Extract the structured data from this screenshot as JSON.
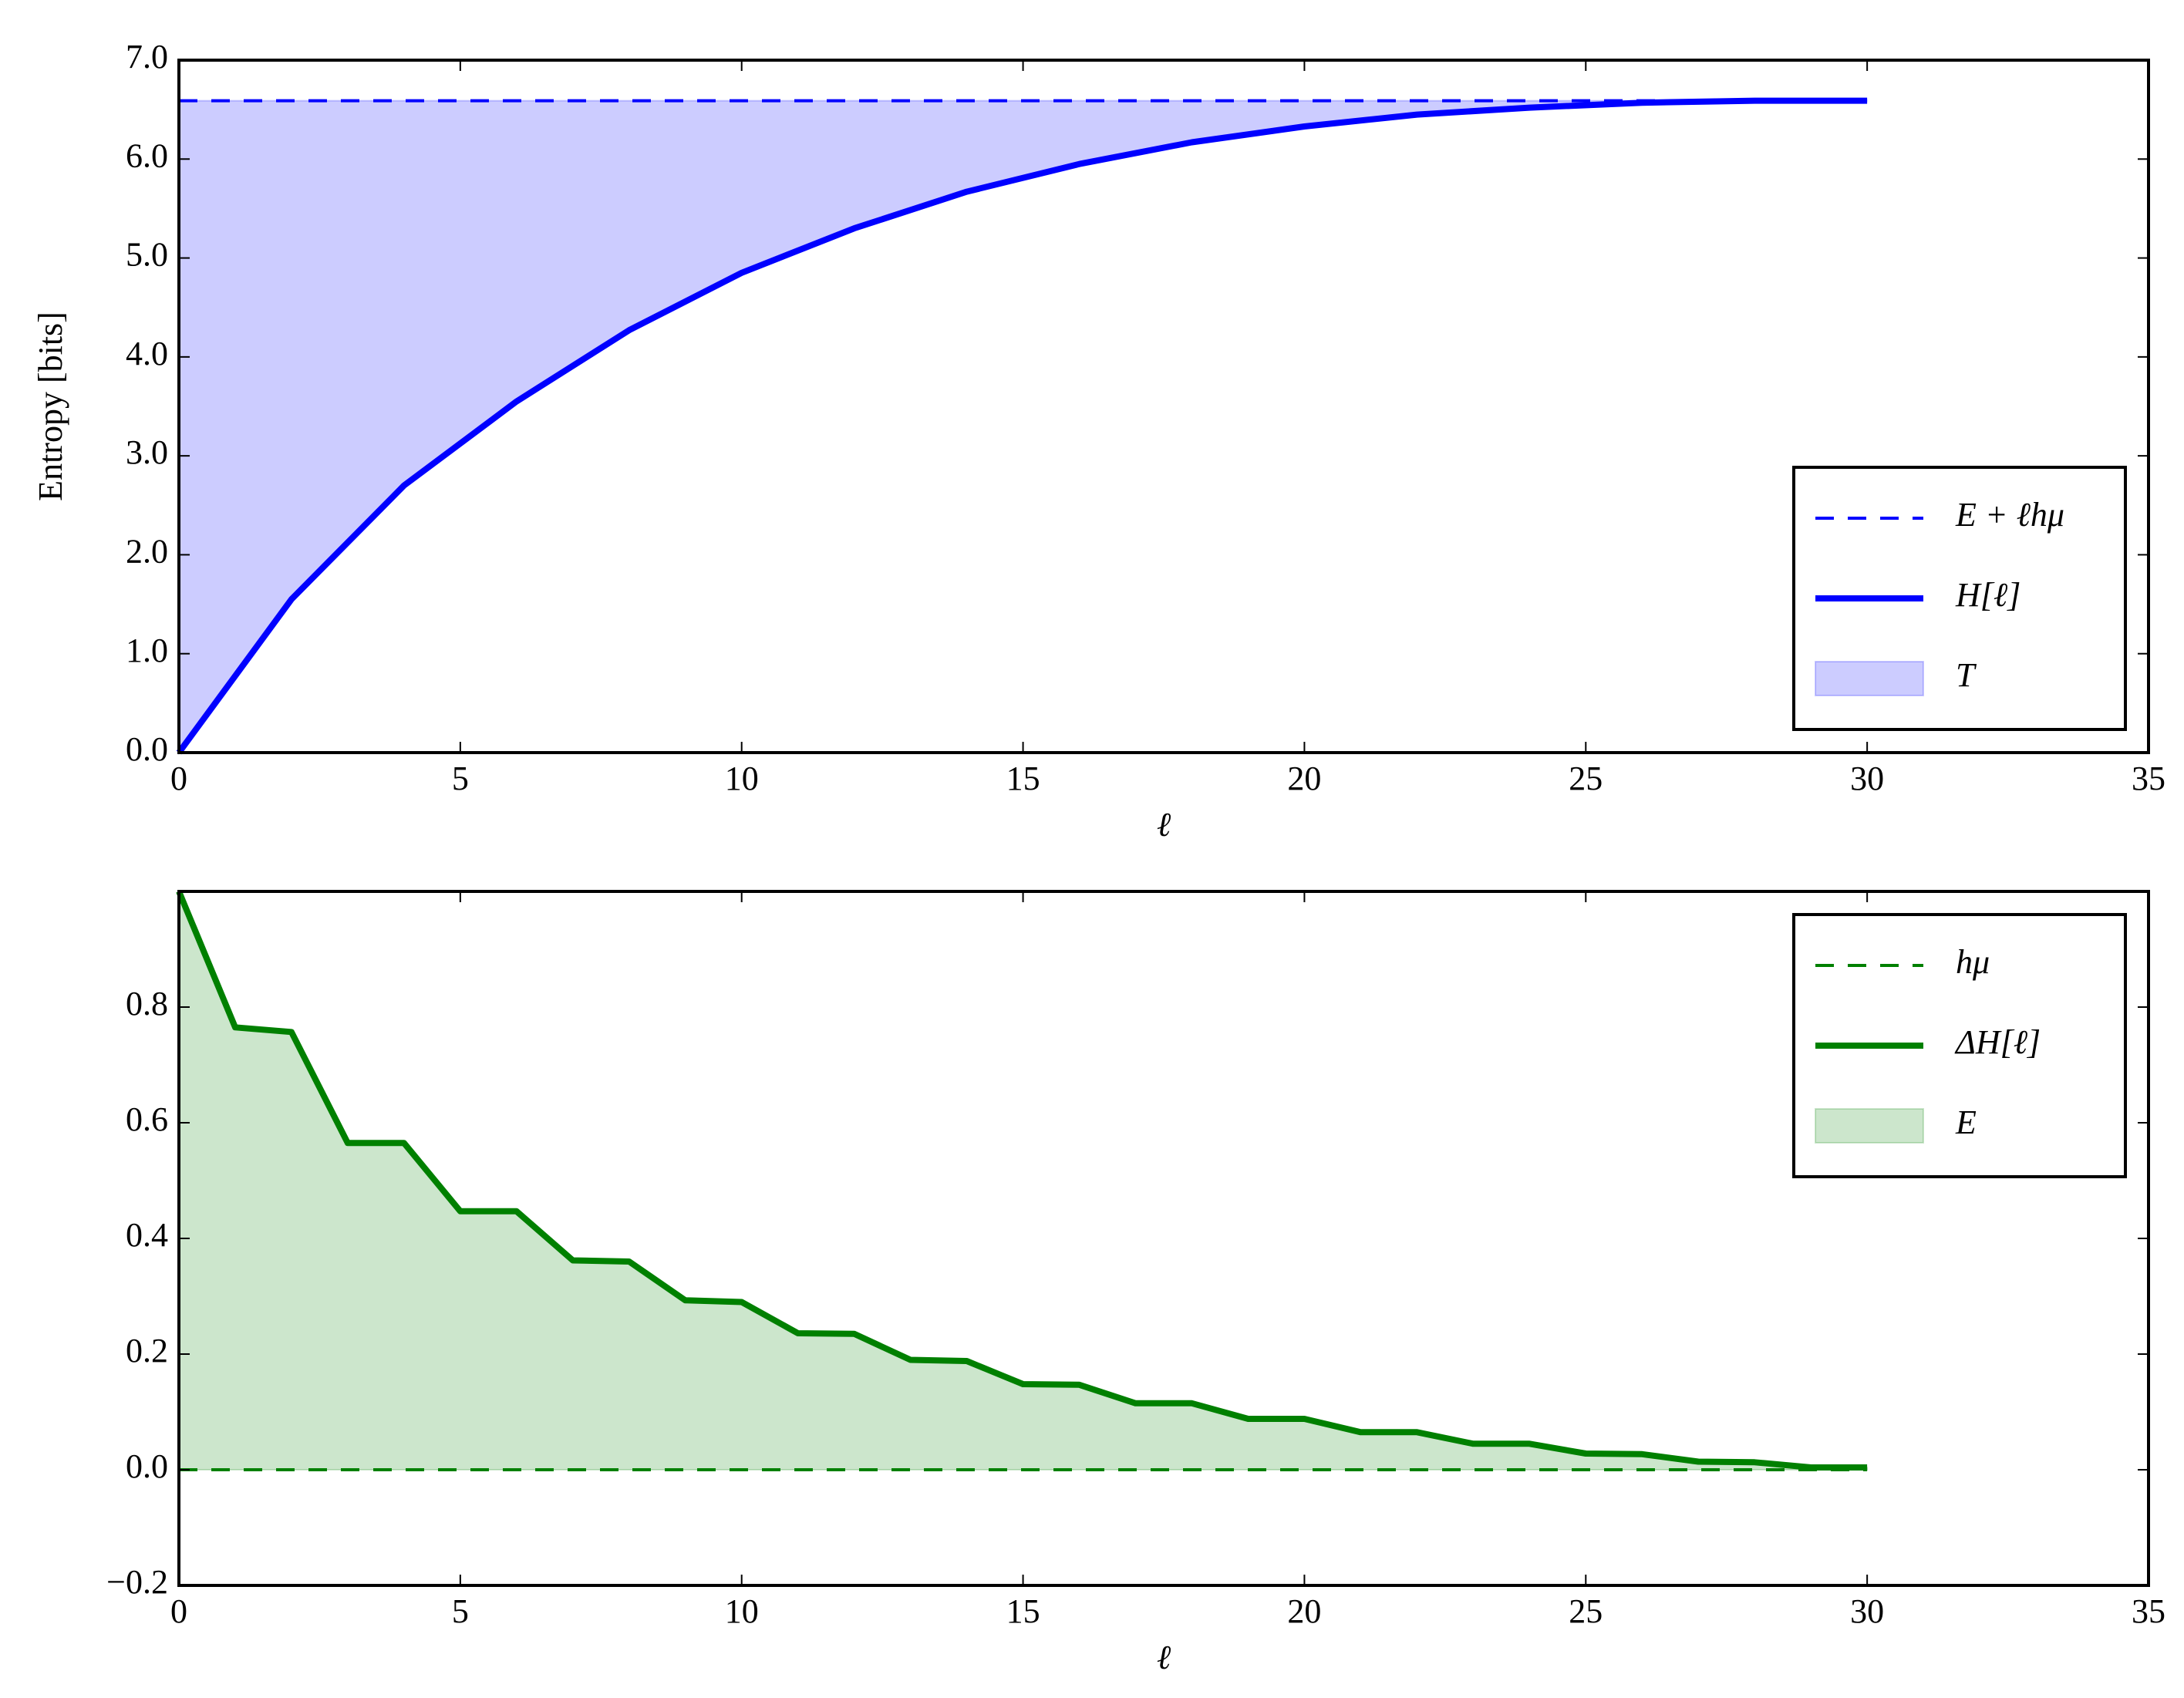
{
  "chart_data": [
    {
      "type": "line",
      "x_label": "ℓ",
      "y_label": "Entropy [bits]",
      "x": [
        0,
        2,
        4,
        6,
        8,
        10,
        12,
        14,
        16,
        18,
        20,
        22,
        24,
        26,
        28,
        30
      ],
      "series": [
        {
          "name": "E + ℓhμ",
          "color": "#0000ff",
          "style": "dashed",
          "values": [
            6.59,
            6.59,
            6.59,
            6.59,
            6.59,
            6.59,
            6.59,
            6.59,
            6.59,
            6.59,
            6.59,
            6.59,
            6.59,
            6.59,
            6.59,
            6.59
          ]
        },
        {
          "name": "H[ℓ]",
          "color": "#0000ff",
          "style": "solid",
          "values": [
            0,
            1.55,
            2.7,
            3.55,
            4.27,
            4.85,
            5.3,
            5.67,
            5.95,
            6.17,
            6.33,
            6.45,
            6.52,
            6.57,
            6.59,
            6.59
          ]
        },
        {
          "name": "T",
          "color": "#0000ff",
          "style": "fill"
        }
      ],
      "xlim": [
        0,
        35
      ],
      "xticks": [
        0,
        5,
        10,
        15,
        20,
        25,
        30,
        35
      ],
      "ylim": [
        0,
        7
      ],
      "yticks": [
        {
          "value": 0,
          "label": "0.0"
        },
        {
          "value": 1,
          "label": "1.0"
        },
        {
          "value": 2,
          "label": "2.0"
        },
        {
          "value": 3,
          "label": "3.0"
        },
        {
          "value": 4,
          "label": "4.0"
        },
        {
          "value": 5,
          "label": "5.0"
        },
        {
          "value": 6,
          "label": "6.0"
        },
        {
          "value": 7,
          "label": "7.0"
        }
      ],
      "legend": "lower right"
    },
    {
      "type": "line",
      "x_label": "ℓ",
      "x": [
        0,
        1,
        2,
        3,
        4,
        5,
        6,
        7,
        8,
        9,
        10,
        11,
        12,
        13,
        14,
        15,
        16,
        17,
        18,
        19,
        20,
        21,
        22,
        23,
        24,
        25,
        26,
        27,
        28,
        29,
        30
      ],
      "series": [
        {
          "name": "hμ",
          "color": "#008000",
          "style": "dashed",
          "values": [
            0,
            0,
            0,
            0,
            0,
            0,
            0,
            0,
            0,
            0,
            0,
            0,
            0,
            0,
            0,
            0,
            0,
            0,
            0,
            0,
            0,
            0,
            0,
            0,
            0,
            0,
            0,
            0,
            0,
            0,
            0
          ]
        },
        {
          "name": "ΔH[ℓ]",
          "color": "#008000",
          "style": "solid",
          "values": [
            1.0,
            0.765,
            0.757,
            0.565,
            0.565,
            0.447,
            0.447,
            0.362,
            0.36,
            0.293,
            0.29,
            0.236,
            0.235,
            0.19,
            0.188,
            0.148,
            0.147,
            0.115,
            0.115,
            0.088,
            0.088,
            0.065,
            0.065,
            0.045,
            0.045,
            0.028,
            0.027,
            0.014,
            0.013,
            0.004,
            0.004
          ]
        },
        {
          "name": "E",
          "color": "#008000",
          "style": "fill"
        }
      ],
      "xlim": [
        0,
        35
      ],
      "xticks": [
        0,
        5,
        10,
        15,
        20,
        25,
        30,
        35
      ],
      "ylim": [
        -0.2,
        1.0
      ],
      "yticks": [
        {
          "value": -0.2,
          "label": "−0.2"
        },
        {
          "value": 0,
          "label": "0.0"
        },
        {
          "value": 0.2,
          "label": "0.2"
        },
        {
          "value": 0.4,
          "label": "0.4"
        },
        {
          "value": 0.6,
          "label": "0.6"
        },
        {
          "value": 0.8,
          "label": "0.8"
        }
      ],
      "legend": "upper right"
    }
  ]
}
